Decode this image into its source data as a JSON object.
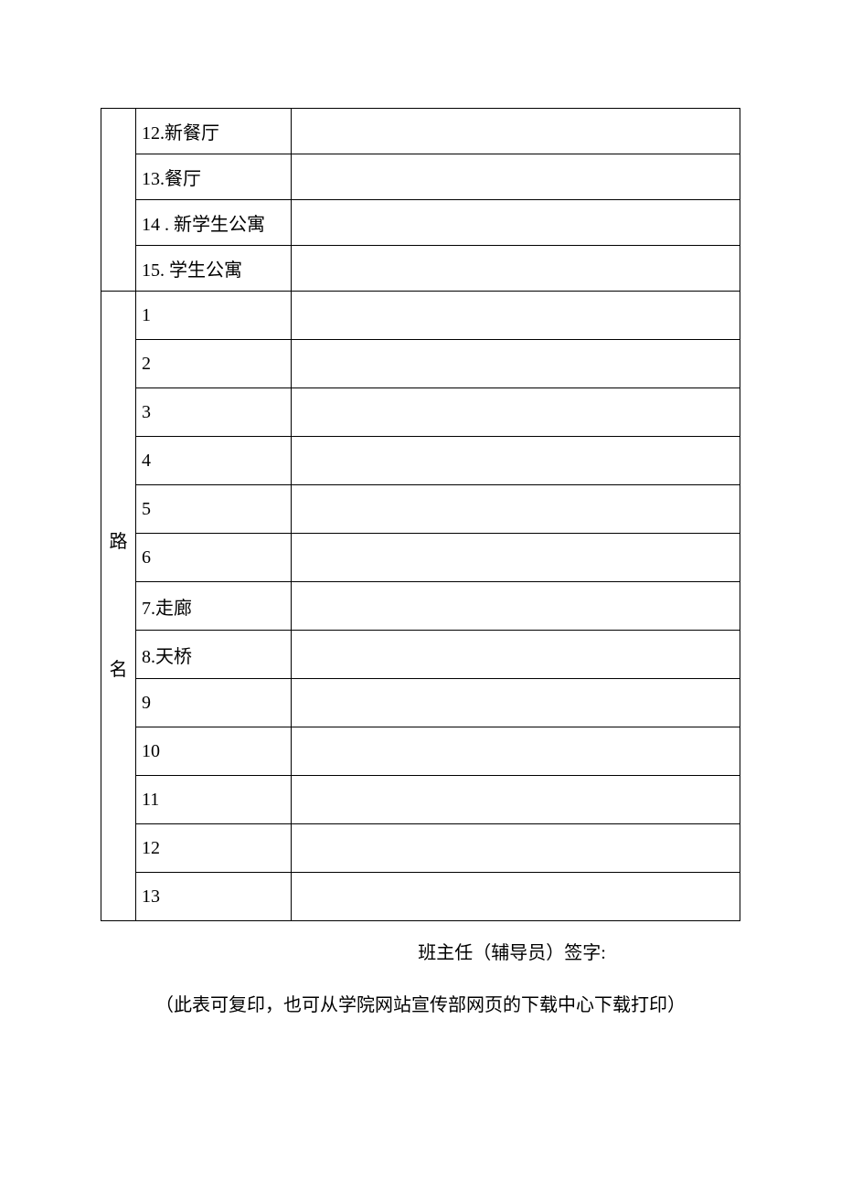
{
  "section1": {
    "rows": [
      {
        "label": "12.新餐厅",
        "value": ""
      },
      {
        "label": "13.餐厅",
        "value": ""
      },
      {
        "label": "14 . 新学生公寓",
        "value": ""
      },
      {
        "label": "15. 学生公寓",
        "value": ""
      }
    ]
  },
  "section2": {
    "verticalLabel": "路\n\n名",
    "rows": [
      {
        "label": "1",
        "value": ""
      },
      {
        "label": "2",
        "value": ""
      },
      {
        "label": "3",
        "value": ""
      },
      {
        "label": "4",
        "value": ""
      },
      {
        "label": "5",
        "value": ""
      },
      {
        "label": "6",
        "value": ""
      },
      {
        "label": "7.走廊",
        "value": ""
      },
      {
        "label": "8.天桥",
        "value": ""
      },
      {
        "label": "9",
        "value": ""
      },
      {
        "label": "10",
        "value": ""
      },
      {
        "label": "11",
        "value": ""
      },
      {
        "label": "12",
        "value": ""
      },
      {
        "label": "13",
        "value": ""
      }
    ]
  },
  "footer": {
    "signature": "班主任（辅导员）签字:",
    "note": "（此表可复印，也可从学院网站宣传部网页的下载中心下载打印）"
  },
  "style": {
    "borderColor": "#000000",
    "background": "#ffffff",
    "textColor": "#000000",
    "fontSize": 20
  }
}
